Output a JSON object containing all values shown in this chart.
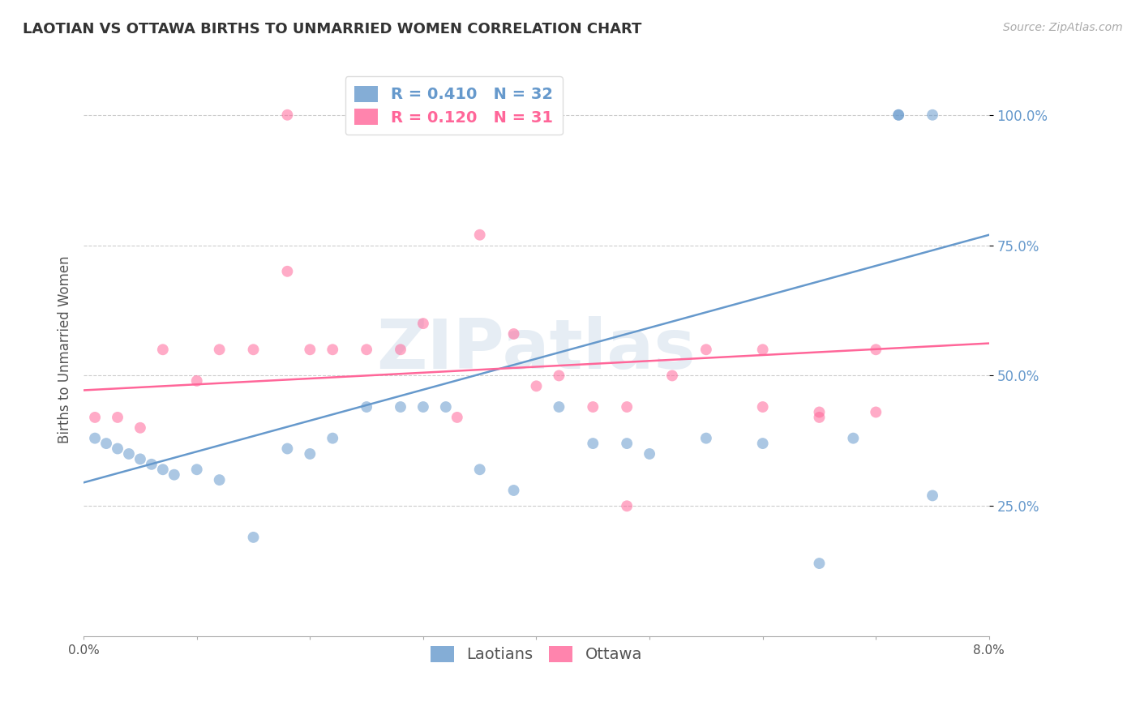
{
  "title": "LAOTIAN VS OTTAWA BIRTHS TO UNMARRIED WOMEN CORRELATION CHART",
  "source": "Source: ZipAtlas.com",
  "ylabel": "Births to Unmarried Women",
  "ytick_labels": [
    "25.0%",
    "50.0%",
    "75.0%",
    "100.0%"
  ],
  "ytick_values": [
    0.25,
    0.5,
    0.75,
    1.0
  ],
  "xmin": 0.0,
  "xmax": 0.08,
  "ymin": 0.0,
  "ymax": 1.1,
  "laotian_color": "#6699CC",
  "ottawa_color": "#FF6699",
  "laotian_R": 0.41,
  "laotian_N": 32,
  "ottawa_R": 0.12,
  "ottawa_N": 31,
  "laotian_scatter_x": [
    0.001,
    0.002,
    0.003,
    0.004,
    0.005,
    0.006,
    0.007,
    0.008,
    0.01,
    0.012,
    0.015,
    0.018,
    0.02,
    0.022,
    0.025,
    0.028,
    0.03,
    0.032,
    0.035,
    0.038,
    0.042,
    0.045,
    0.048,
    0.05,
    0.055,
    0.06,
    0.065,
    0.068,
    0.072,
    0.075,
    0.072,
    0.075
  ],
  "laotian_scatter_y": [
    0.38,
    0.37,
    0.36,
    0.35,
    0.34,
    0.33,
    0.32,
    0.31,
    0.32,
    0.3,
    0.19,
    0.36,
    0.35,
    0.38,
    0.44,
    0.44,
    0.44,
    0.44,
    0.32,
    0.28,
    0.44,
    0.37,
    0.37,
    0.35,
    0.38,
    0.37,
    0.14,
    0.38,
    1.0,
    0.27,
    1.0,
    1.0
  ],
  "ottawa_scatter_x": [
    0.001,
    0.003,
    0.005,
    0.007,
    0.01,
    0.012,
    0.015,
    0.018,
    0.02,
    0.022,
    0.025,
    0.028,
    0.033,
    0.038,
    0.042,
    0.045,
    0.048,
    0.052,
    0.055,
    0.06,
    0.065,
    0.07,
    0.018,
    0.025,
    0.03,
    0.04,
    0.06,
    0.065,
    0.07,
    0.035,
    0.048
  ],
  "ottawa_scatter_y": [
    0.42,
    0.42,
    0.4,
    0.55,
    0.49,
    0.55,
    0.55,
    0.7,
    0.55,
    0.55,
    0.55,
    0.55,
    0.42,
    0.58,
    0.5,
    0.44,
    0.44,
    0.5,
    0.55,
    0.44,
    0.43,
    0.55,
    1.0,
    1.0,
    0.6,
    0.48,
    0.55,
    0.42,
    0.43,
    0.77,
    0.25
  ],
  "laotian_trend_x": [
    0.0,
    0.08
  ],
  "laotian_trend_y": [
    0.295,
    0.77
  ],
  "ottawa_trend_x": [
    0.0,
    0.08
  ],
  "ottawa_trend_y": [
    0.472,
    0.562
  ],
  "watermark": "ZIPatlas",
  "marker_size": 100,
  "alpha": 0.55,
  "grid_color": "#cccccc",
  "grid_style": "--",
  "legend_fontsize": 14,
  "title_fontsize": 13,
  "source_fontsize": 10,
  "ylabel_fontsize": 12,
  "ytick_fontsize": 12,
  "xtick_fontsize": 11
}
